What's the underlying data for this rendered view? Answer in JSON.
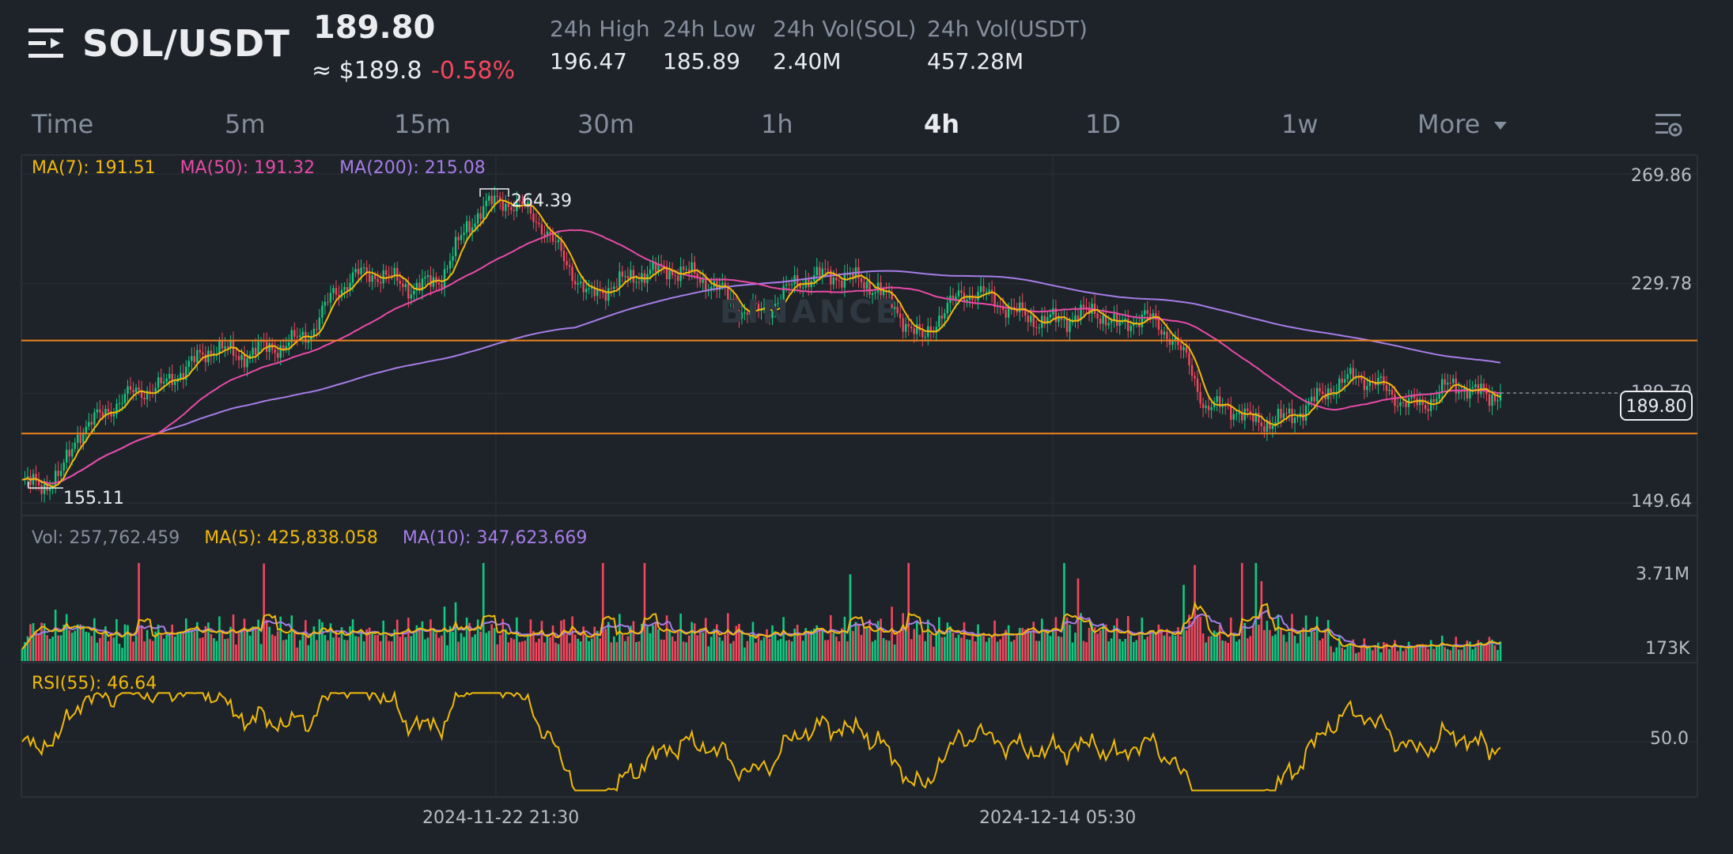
{
  "header": {
    "pair": "SOL/USDT",
    "last_price": "189.80",
    "approx_usd": "≈ $189.8",
    "change_pct": "-0.58%",
    "stats": [
      {
        "label": "24h High",
        "value": "196.47"
      },
      {
        "label": "24h Low",
        "value": "185.89"
      },
      {
        "label": "24h Vol(SOL)",
        "value": "2.40M"
      },
      {
        "label": "24h Vol(USDT)",
        "value": "457.28M"
      }
    ]
  },
  "tabs": [
    {
      "label": "Time",
      "active": false
    },
    {
      "label": "5m",
      "active": false
    },
    {
      "label": "15m",
      "active": false
    },
    {
      "label": "30m",
      "active": false
    },
    {
      "label": "1h",
      "active": false
    },
    {
      "label": "4h",
      "active": true
    },
    {
      "label": "1D",
      "active": false
    },
    {
      "label": "1w",
      "active": false
    },
    {
      "label": "More",
      "active": false
    }
  ],
  "icons": {
    "menu": "menu-icon",
    "more_caret": "caret-down-icon",
    "settings": "chart-settings-icon"
  },
  "colors": {
    "background": "#1e2329",
    "up": "#0ecb81",
    "down": "#f6465d",
    "ma7": "#f0b90b",
    "ma50": "#e84aa8",
    "ma200": "#a77ce8",
    "support_line": "#f0841e",
    "rsi": "#f0b90b"
  },
  "main_chart": {
    "ma_legend": [
      {
        "text": "MA(7): 191.51",
        "color": "#f0b90b"
      },
      {
        "text": "MA(50): 191.32",
        "color": "#e84aa8"
      },
      {
        "text": "MA(200): 215.08",
        "color": "#a77ce8"
      }
    ],
    "y_ticks": [
      "269.86",
      "229.78",
      "189.70",
      "149.64"
    ],
    "current_price_tag": "189.80",
    "high_label": "264.39",
    "low_label": "155.11",
    "watermark": "BINANCE"
  },
  "volume_chart": {
    "legend": [
      {
        "text": "Vol: 257,762.459",
        "color": "#848e9c"
      },
      {
        "text": "MA(5): 425,838.058",
        "color": "#f0b90b"
      },
      {
        "text": "MA(10): 347,623.669",
        "color": "#a77ce8"
      }
    ],
    "y_ticks": [
      "3.71M",
      "173K"
    ]
  },
  "rsi_chart": {
    "legend": "RSI(55): 46.64",
    "y_ticks": [
      "50.0"
    ]
  },
  "x_axis": {
    "dates": [
      "2024-11-22 21:30",
      "2024-12-14 05:30"
    ]
  },
  "chart_data": {
    "type": "candlestick",
    "symbol": "SOL/USDT",
    "interval": "4h",
    "ylim": [
      149.64,
      269.86
    ],
    "y_ticks": [
      269.86,
      229.78,
      189.7,
      149.64
    ],
    "x_ticks": [
      "2024-11-22 21:30",
      "2024-12-14 05:30"
    ],
    "grid": true,
    "marked_high": 264.39,
    "marked_low": 155.11,
    "last_close": 189.8,
    "horizontal_levels": [
      209.0,
      175.0
    ],
    "close_path": [
      {
        "i": 0,
        "v": 157
      },
      {
        "i": 8,
        "v": 156
      },
      {
        "i": 14,
        "v": 160
      },
      {
        "i": 20,
        "v": 175
      },
      {
        "i": 30,
        "v": 183
      },
      {
        "i": 40,
        "v": 190
      },
      {
        "i": 50,
        "v": 192
      },
      {
        "i": 60,
        "v": 200
      },
      {
        "i": 70,
        "v": 207
      },
      {
        "i": 78,
        "v": 203
      },
      {
        "i": 86,
        "v": 206
      },
      {
        "i": 94,
        "v": 207
      },
      {
        "i": 104,
        "v": 212
      },
      {
        "i": 112,
        "v": 226
      },
      {
        "i": 120,
        "v": 233
      },
      {
        "i": 130,
        "v": 233
      },
      {
        "i": 140,
        "v": 228
      },
      {
        "i": 150,
        "v": 231
      },
      {
        "i": 160,
        "v": 250
      },
      {
        "i": 166,
        "v": 258
      },
      {
        "i": 172,
        "v": 260
      },
      {
        "i": 180,
        "v": 258
      },
      {
        "i": 188,
        "v": 250
      },
      {
        "i": 196,
        "v": 237
      },
      {
        "i": 204,
        "v": 225
      },
      {
        "i": 212,
        "v": 229
      },
      {
        "i": 222,
        "v": 233
      },
      {
        "i": 232,
        "v": 235
      },
      {
        "i": 242,
        "v": 233
      },
      {
        "i": 252,
        "v": 227
      },
      {
        "i": 260,
        "v": 219
      },
      {
        "i": 268,
        "v": 220
      },
      {
        "i": 278,
        "v": 230
      },
      {
        "i": 288,
        "v": 233
      },
      {
        "i": 298,
        "v": 232
      },
      {
        "i": 308,
        "v": 228
      },
      {
        "i": 316,
        "v": 218
      },
      {
        "i": 324,
        "v": 209
      },
      {
        "i": 330,
        "v": 218
      },
      {
        "i": 338,
        "v": 226
      },
      {
        "i": 346,
        "v": 226
      },
      {
        "i": 356,
        "v": 220
      },
      {
        "i": 366,
        "v": 216
      },
      {
        "i": 376,
        "v": 217
      },
      {
        "i": 386,
        "v": 220
      },
      {
        "i": 394,
        "v": 214
      },
      {
        "i": 404,
        "v": 218
      },
      {
        "i": 414,
        "v": 210
      },
      {
        "i": 420,
        "v": 200
      },
      {
        "i": 426,
        "v": 184
      },
      {
        "i": 434,
        "v": 185
      },
      {
        "i": 442,
        "v": 180
      },
      {
        "i": 450,
        "v": 179
      },
      {
        "i": 460,
        "v": 183
      },
      {
        "i": 470,
        "v": 191
      },
      {
        "i": 480,
        "v": 196
      },
      {
        "i": 488,
        "v": 193
      },
      {
        "i": 496,
        "v": 187
      },
      {
        "i": 504,
        "v": 185
      },
      {
        "i": 512,
        "v": 192
      },
      {
        "i": 520,
        "v": 192
      },
      {
        "i": 528,
        "v": 188
      },
      {
        "i": 532,
        "v": 190
      }
    ],
    "rsi": {
      "name": "RSI(55)",
      "last": 46.64,
      "reference": 50.0
    },
    "volume_ticks": [
      "3.71M",
      "173K"
    ]
  }
}
